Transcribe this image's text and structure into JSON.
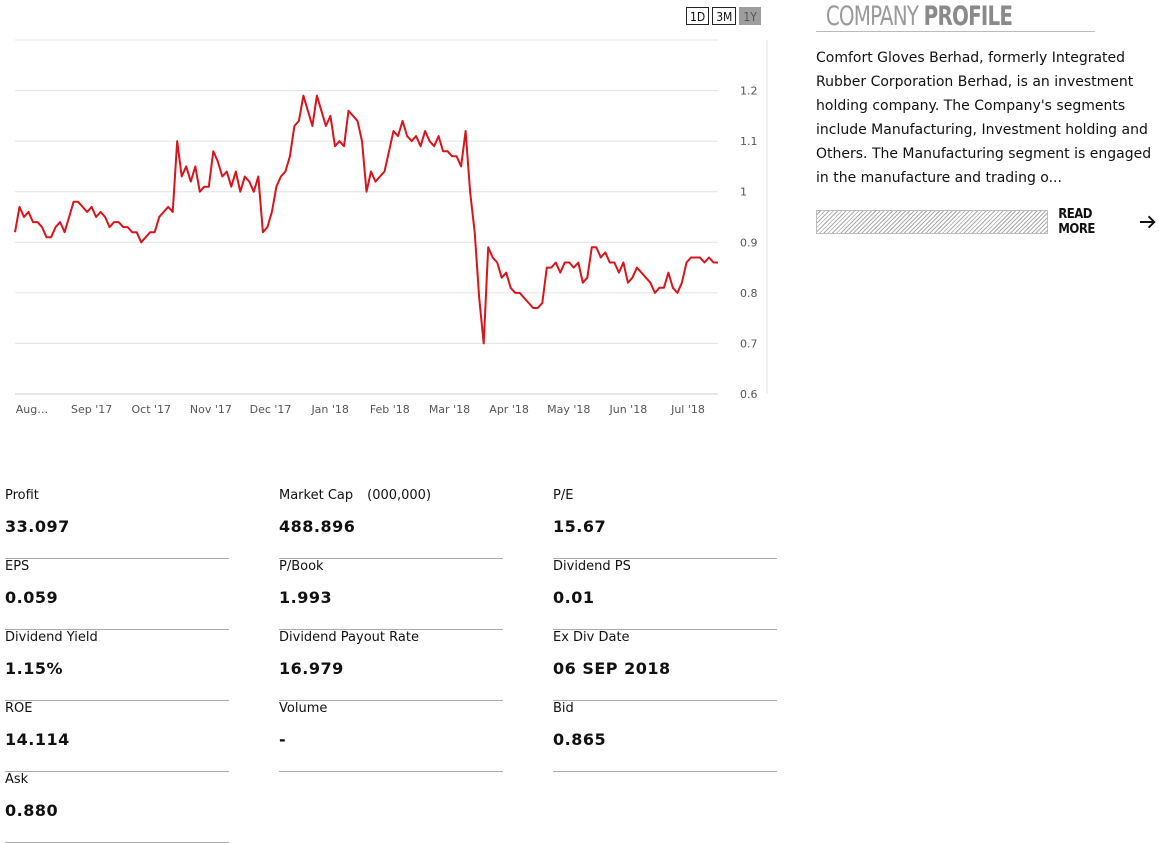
{
  "range_tabs": [
    {
      "label": "1D",
      "active": false
    },
    {
      "label": "3M",
      "active": false
    },
    {
      "label": "1Y",
      "active": true
    }
  ],
  "chart_data": {
    "type": "line",
    "x_labels": [
      "Aug…",
      "Sep '17",
      "Oct '17",
      "Nov '17",
      "Dec '17",
      "Jan '18",
      "Feb '18",
      "Mar '18",
      "Apr '18",
      "May '18",
      "Jun '18",
      "Jul '18"
    ],
    "y_ticks": [
      0.6,
      0.7,
      0.8,
      0.9,
      1,
      1.1,
      1.2
    ],
    "ylim": [
      0.6,
      1.3
    ],
    "line_color": "#d8141c",
    "grid": true,
    "series": [
      {
        "values": [
          0.92,
          0.97,
          0.95,
          0.96,
          0.94,
          0.94,
          0.93,
          0.91,
          0.91,
          0.93,
          0.94,
          0.92,
          0.95,
          0.98,
          0.98,
          0.97,
          0.96,
          0.97,
          0.95,
          0.96,
          0.95,
          0.93,
          0.94,
          0.94,
          0.93,
          0.93,
          0.92,
          0.92,
          0.9,
          0.91,
          0.92,
          0.92,
          0.95,
          0.96,
          0.97,
          0.96,
          1.1,
          1.03,
          1.05,
          1.02,
          1.05,
          1.0,
          1.01,
          1.01,
          1.08,
          1.06,
          1.03,
          1.04,
          1.01,
          1.04,
          1.0,
          1.03,
          1.02,
          1.0,
          1.03,
          0.92,
          0.93,
          0.96,
          1.01,
          1.03,
          1.04,
          1.07,
          1.13,
          1.14,
          1.19,
          1.16,
          1.13,
          1.19,
          1.16,
          1.13,
          1.15,
          1.09,
          1.1,
          1.09,
          1.16,
          1.15,
          1.14,
          1.1,
          1.0,
          1.04,
          1.02,
          1.03,
          1.04,
          1.08,
          1.12,
          1.11,
          1.14,
          1.11,
          1.1,
          1.11,
          1.09,
          1.12,
          1.1,
          1.09,
          1.11,
          1.08,
          1.08,
          1.07,
          1.07,
          1.05,
          1.12,
          1.0,
          0.92,
          0.79,
          0.7,
          0.89,
          0.87,
          0.86,
          0.83,
          0.84,
          0.81,
          0.8,
          0.8,
          0.79,
          0.78,
          0.77,
          0.77,
          0.78,
          0.85,
          0.85,
          0.86,
          0.84,
          0.86,
          0.86,
          0.85,
          0.86,
          0.82,
          0.83,
          0.89,
          0.89,
          0.87,
          0.88,
          0.86,
          0.86,
          0.84,
          0.86,
          0.82,
          0.83,
          0.85,
          0.84,
          0.83,
          0.82,
          0.8,
          0.81,
          0.81,
          0.84,
          0.81,
          0.8,
          0.82,
          0.86,
          0.87,
          0.87,
          0.87,
          0.86,
          0.87,
          0.86,
          0.86
        ]
      }
    ]
  },
  "profile": {
    "title_light": "COMPANY",
    "title_bold": "PROFILE",
    "description": "Comfort Gloves Berhad, formerly Integrated Rubber Corporation Berhad, is an investment holding company. The Company's segments include Manufacturing, Investment holding and Others. The Manufacturing segment is engaged in the manufacture and trading o...",
    "read_more": "READ MORE"
  },
  "stats": {
    "profit": {
      "label": "Profit",
      "value": "33.097"
    },
    "market_cap": {
      "label": "Market Cap",
      "unit": "(000,000)",
      "value": "488.896"
    },
    "pe": {
      "label": "P/E",
      "value": "15.67"
    },
    "eps": {
      "label": "EPS",
      "value": "0.059"
    },
    "pbook": {
      "label": "P/Book",
      "value": "1.993"
    },
    "dividend_ps": {
      "label": "Dividend PS",
      "value": "0.01"
    },
    "dividend_yield": {
      "label": "Dividend Yield",
      "value": "1.15%"
    },
    "dividend_payout": {
      "label": "Dividend Payout Rate",
      "value": "16.979"
    },
    "ex_div_date": {
      "label": "Ex Div Date",
      "value": "06 SEP 2018"
    },
    "roe": {
      "label": "ROE",
      "value": "14.114"
    },
    "volume": {
      "label": "Volume",
      "value": "-"
    },
    "bid": {
      "label": "Bid",
      "value": "0.865"
    },
    "ask": {
      "label": "Ask",
      "value": "0.880"
    }
  }
}
